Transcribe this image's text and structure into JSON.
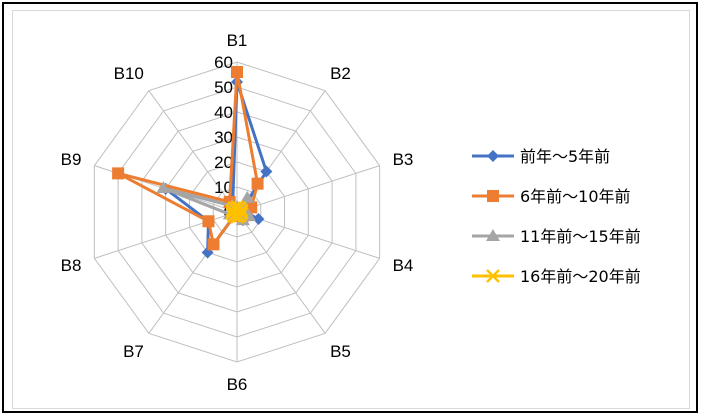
{
  "chart_data": {
    "type": "radar",
    "categories": [
      "B1",
      "B2",
      "B3",
      "B4",
      "B5",
      "B6",
      "B7",
      "B8",
      "B9",
      "B10"
    ],
    "rmax": 60,
    "ticks": [
      0,
      10,
      20,
      30,
      40,
      50,
      60
    ],
    "series": [
      {
        "name": "前年～5年前",
        "color": "#4472c4",
        "marker": "diamond",
        "values": [
          52,
          20,
          2,
          9,
          4,
          0,
          20,
          12,
          30,
          3
        ]
      },
      {
        "name": "6年前～10年前",
        "color": "#ed7d31",
        "marker": "square",
        "values": [
          56,
          14,
          6,
          4,
          2,
          0,
          16,
          12,
          50,
          5
        ]
      },
      {
        "name": "11年前～15年前",
        "color": "#a5a5a5",
        "marker": "triangle",
        "values": [
          2,
          7,
          3,
          5,
          4,
          1,
          2,
          3,
          31,
          3
        ]
      },
      {
        "name": "16年前～20年前",
        "color": "#ffc000",
        "marker": "x",
        "values": [
          2,
          2,
          2,
          2,
          2,
          2,
          2,
          2,
          2,
          2
        ]
      }
    ]
  }
}
